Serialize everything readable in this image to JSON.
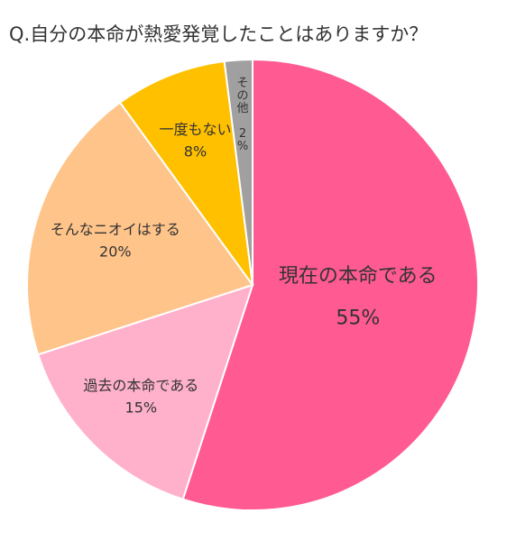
{
  "chart_data": {
    "type": "pie",
    "title": "Q.自分の本命が熱愛発覚したことはありますか？",
    "slices": [
      {
        "label": "現在の本命である",
        "value": 55,
        "value_label": "55%",
        "color": "#FF5A92"
      },
      {
        "label": "過去の本命である",
        "value": 15,
        "value_label": "15%",
        "color": "#FFB1CC"
      },
      {
        "label": "そんなニオイはする",
        "value": 20,
        "value_label": "20%",
        "color": "#FFC48A"
      },
      {
        "label": "一度もない",
        "value": 8,
        "value_label": "8%",
        "color": "#FFC000"
      },
      {
        "label": "その他",
        "value": 2,
        "value_label": "2%",
        "color": "#A0A0A0"
      }
    ],
    "start": "12 o'clock",
    "direction": "clockwise",
    "legend": "none (labels on slices)"
  }
}
